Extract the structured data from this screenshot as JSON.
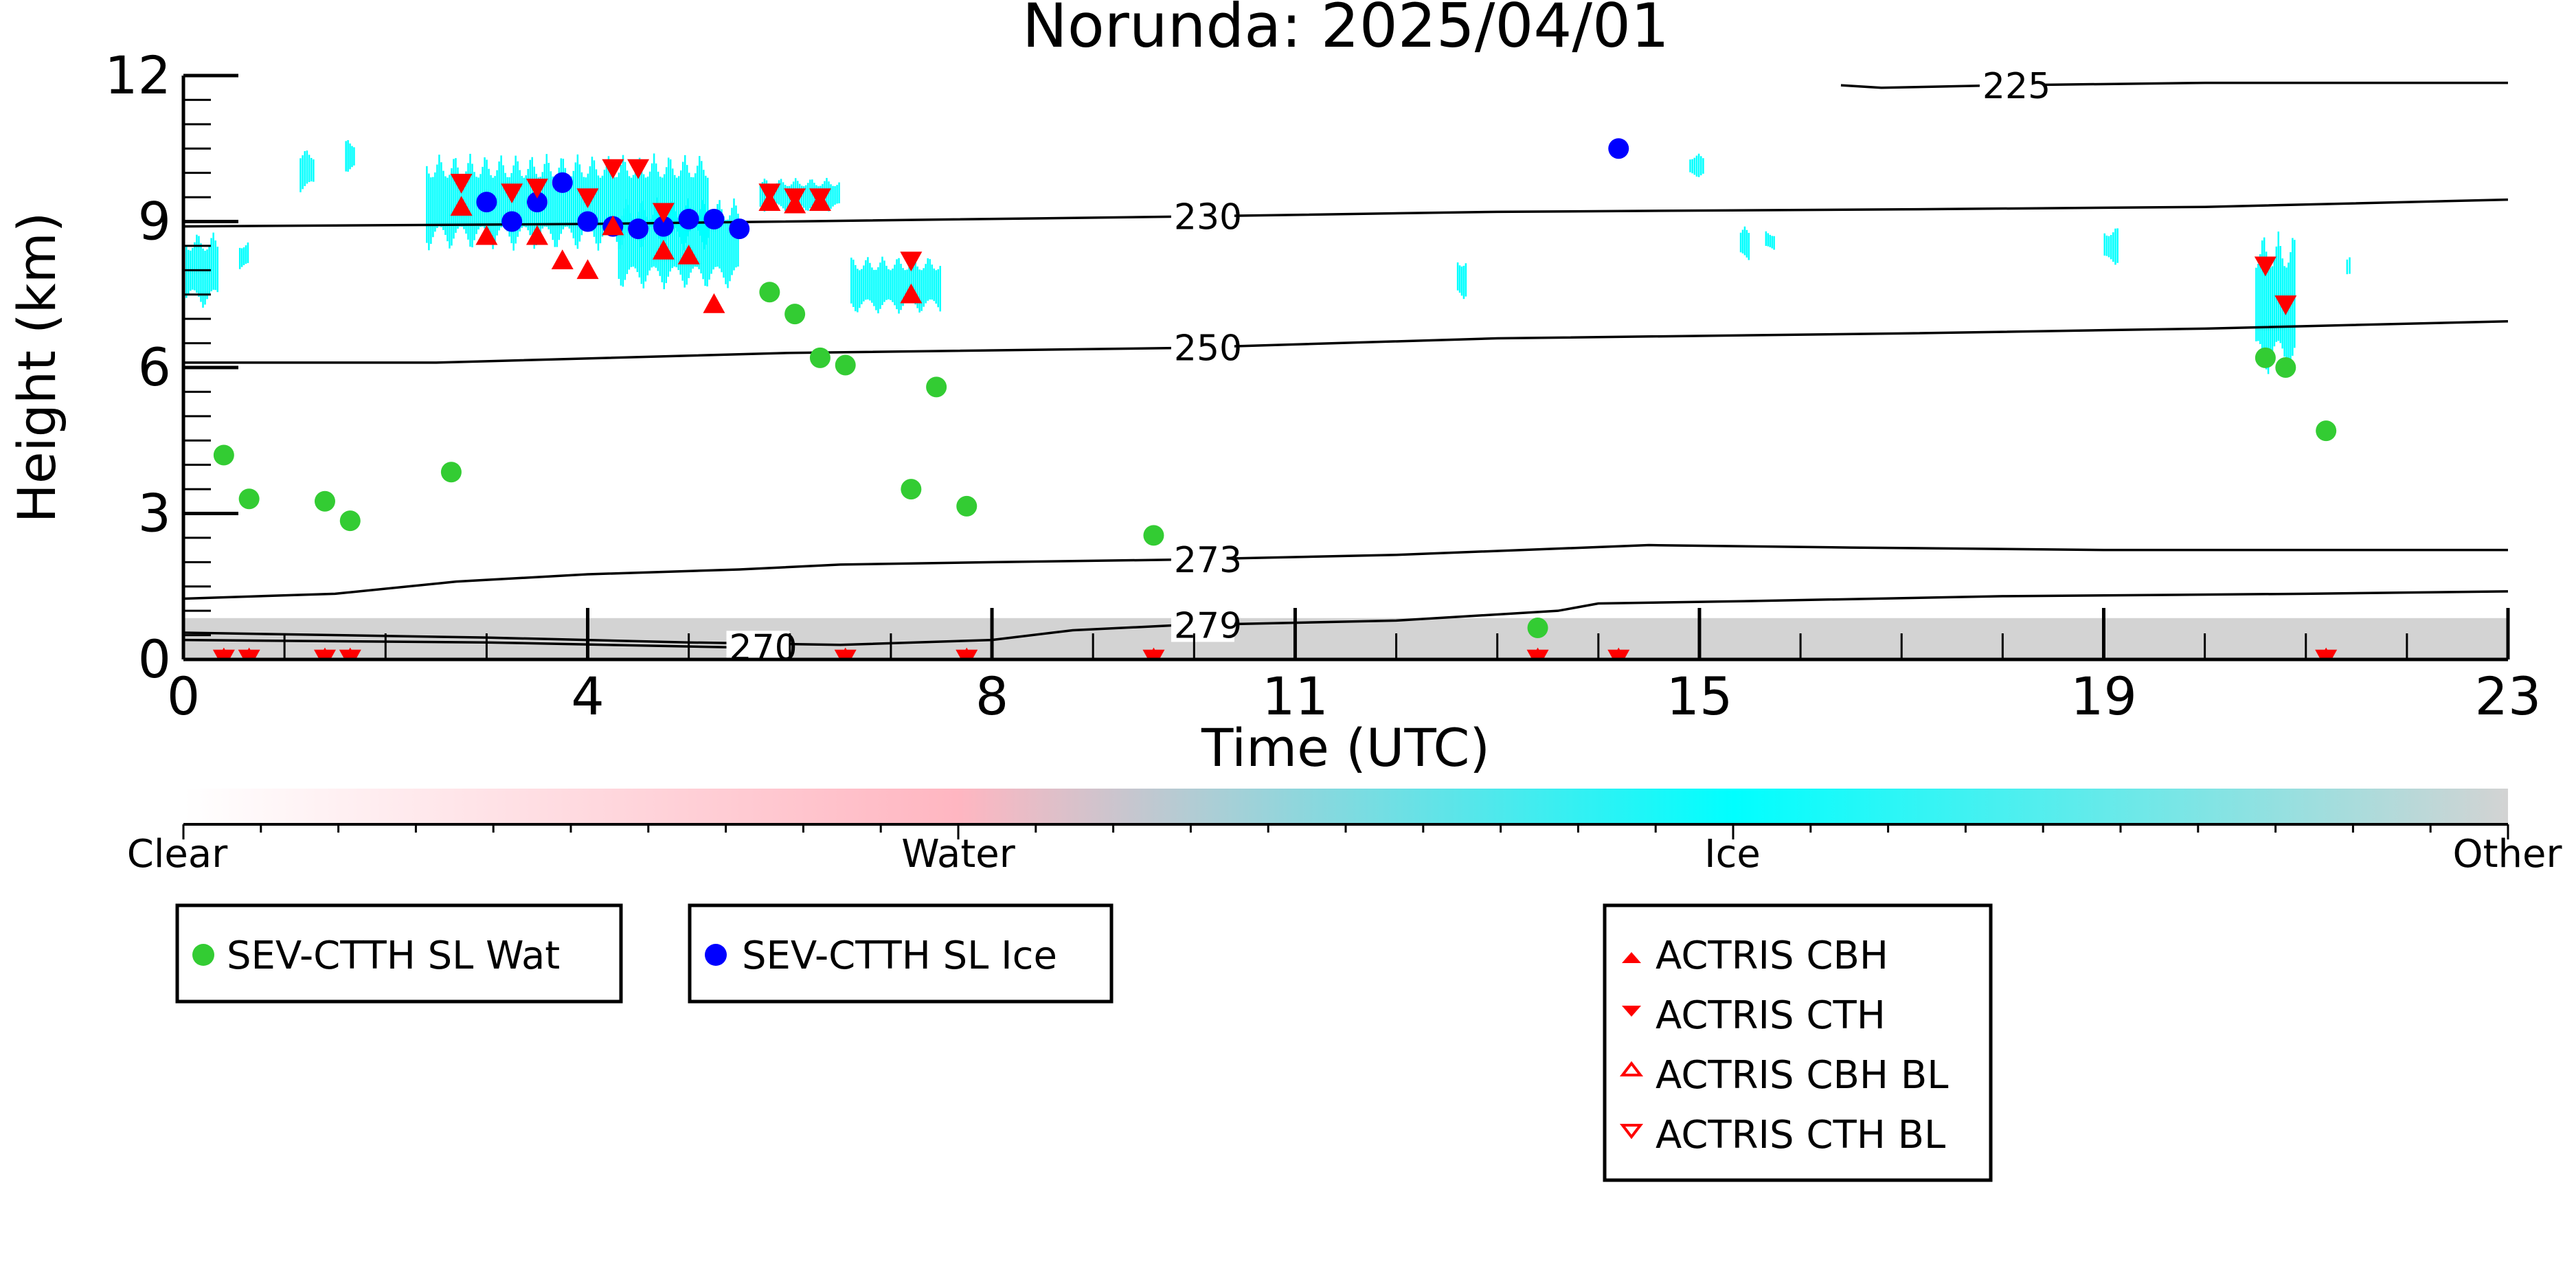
{
  "chart_data": {
    "type": "scatter",
    "title": "Norunda: 2025/04/01",
    "xlabel": "Time (UTC)",
    "ylabel": "Height (km)",
    "xlim": [
      0,
      23
    ],
    "ylim": [
      0,
      12
    ],
    "x_ticks": [
      0,
      4,
      8,
      11,
      15,
      19,
      23
    ],
    "y_ticks": [
      0,
      3,
      6,
      9,
      12
    ],
    "colorbar": {
      "labels": [
        "Clear",
        "Water",
        "Ice",
        "Other"
      ],
      "colors": {
        "Clear": "#ffffff",
        "Water": "#ffb6c1",
        "Ice": "#00ffff",
        "Other": "#d3d3d3"
      }
    },
    "isotherms": [
      {
        "label": "230",
        "label_x": 9.8,
        "points": [
          [
            0,
            8.9
          ],
          [
            4,
            8.95
          ],
          [
            9.8,
            9.1
          ],
          [
            13,
            9.2
          ],
          [
            17,
            9.25
          ],
          [
            20,
            9.3
          ],
          [
            23,
            9.45
          ]
        ]
      },
      {
        "label": "250",
        "label_x": 9.8,
        "points": [
          [
            0,
            6.1
          ],
          [
            2.5,
            6.1
          ],
          [
            6,
            6.3
          ],
          [
            9.8,
            6.4
          ],
          [
            13,
            6.6
          ],
          [
            17,
            6.7
          ],
          [
            20,
            6.8
          ],
          [
            23,
            6.95
          ]
        ]
      },
      {
        "label": "273",
        "label_x": 9.8,
        "points": [
          [
            0,
            1.25
          ],
          [
            1.5,
            1.35
          ],
          [
            2.7,
            1.6
          ],
          [
            4,
            1.75
          ],
          [
            5.5,
            1.85
          ],
          [
            6.5,
            1.95
          ],
          [
            8,
            2.0
          ],
          [
            9.8,
            2.05
          ],
          [
            12,
            2.15
          ],
          [
            14.5,
            2.35
          ],
          [
            16.5,
            2.3
          ],
          [
            19,
            2.25
          ],
          [
            23,
            2.25
          ]
        ]
      },
      {
        "label": "279",
        "label_x": 9.8,
        "points": [
          [
            0,
            0.55
          ],
          [
            3,
            0.45
          ],
          [
            5,
            0.35
          ],
          [
            6.5,
            0.3
          ],
          [
            8,
            0.4
          ],
          [
            8.8,
            0.6
          ],
          [
            9.8,
            0.7
          ],
          [
            12,
            0.8
          ],
          [
            13.6,
            1.0
          ],
          [
            14,
            1.15
          ],
          [
            15.5,
            1.2
          ],
          [
            18,
            1.3
          ],
          [
            21,
            1.35
          ],
          [
            23,
            1.4
          ]
        ]
      },
      {
        "label": "270",
        "label_x": 5.4,
        "points": [
          [
            0,
            0.4
          ],
          [
            3,
            0.35
          ],
          [
            5.4,
            0.25
          ]
        ]
      },
      {
        "label": "225",
        "label_x": 17.8,
        "points": [
          [
            16.4,
            11.8
          ],
          [
            16.8,
            11.75
          ],
          [
            18,
            11.8
          ],
          [
            20,
            11.85
          ],
          [
            23,
            11.85
          ]
        ]
      }
    ],
    "series": [
      {
        "name": "SEV-CTTH SL Wat",
        "color": "#33cc33",
        "marker": "circle",
        "x": [
          0.4,
          0.65,
          1.4,
          1.65,
          2.65,
          5.8,
          6.05,
          6.3,
          6.55,
          7.2,
          7.45,
          7.75,
          9.6,
          13.4,
          20.6,
          20.8,
          21.2
        ],
        "y": [
          4.2,
          3.3,
          3.25,
          2.85,
          3.85,
          7.55,
          7.1,
          6.2,
          6.05,
          3.5,
          5.6,
          3.15,
          2.55,
          0.65,
          6.2,
          6.0,
          4.7
        ]
      },
      {
        "name": "SEV-CTTH SL Ice",
        "color": "#0000ff",
        "marker": "circle",
        "x": [
          3.0,
          3.25,
          3.5,
          3.75,
          4.0,
          4.25,
          4.5,
          4.75,
          5.0,
          5.25,
          5.5,
          14.2
        ],
        "y": [
          9.4,
          9.0,
          9.4,
          9.8,
          9.0,
          8.9,
          8.85,
          8.9,
          9.05,
          9.05,
          8.85,
          10.5
        ]
      },
      {
        "name": "ACTRIS CBH",
        "color": "#ff0000",
        "marker": "triangle-up",
        "x": [
          0.4,
          0.65,
          1.4,
          1.65,
          2.75,
          3.0,
          3.5,
          3.75,
          4.0,
          4.25,
          4.75,
          5.0,
          5.25,
          5.8,
          6.05,
          6.3,
          6.55,
          7.2,
          7.75,
          9.6,
          13.4,
          14.2,
          21.2
        ],
        "y": [
          0.02,
          0.02,
          0.02,
          0.02,
          9.3,
          8.7,
          8.7,
          8.2,
          8.0,
          8.9,
          8.4,
          8.3,
          7.3,
          9.4,
          9.35,
          9.4,
          0.02,
          7.5,
          0.02,
          0.02,
          0.02,
          0.02,
          0.02
        ]
      },
      {
        "name": "ACTRIS CTH",
        "color": "#ff0000",
        "marker": "triangle-down",
        "x": [
          0.4,
          0.65,
          1.4,
          1.65,
          2.75,
          3.25,
          3.5,
          4.0,
          4.25,
          4.5,
          4.75,
          5.8,
          6.05,
          6.3,
          6.55,
          7.2,
          7.75,
          9.6,
          13.4,
          14.2,
          20.6,
          20.8,
          21.2
        ],
        "y": [
          0.02,
          0.02,
          0.02,
          0.02,
          9.8,
          9.6,
          9.7,
          9.5,
          10.1,
          10.1,
          9.2,
          9.6,
          9.5,
          9.5,
          0.02,
          8.2,
          0.02,
          0.02,
          0.02,
          0.02,
          8.1,
          7.3,
          0.02
        ]
      },
      {
        "name": "ACTRIS CBH BL",
        "color": "#ff0000",
        "marker": "triangle-up-open",
        "x": [],
        "y": []
      },
      {
        "name": "ACTRIS CTH BL",
        "color": "#ff0000",
        "marker": "triangle-down-open",
        "x": [],
        "y": []
      }
    ],
    "cloud_mask": {
      "ice_patches": [
        {
          "x0": 0.0,
          "x1": 0.35,
          "ytop": 8.8,
          "ybot": 7.2
        },
        {
          "x0": 0.55,
          "x1": 0.65,
          "ytop": 8.6,
          "ybot": 8.0
        },
        {
          "x0": 1.15,
          "x1": 1.3,
          "ytop": 10.5,
          "ybot": 9.6
        },
        {
          "x0": 1.6,
          "x1": 1.7,
          "ytop": 10.7,
          "ybot": 10.0
        },
        {
          "x0": 2.4,
          "x1": 5.2,
          "ytop": 10.4,
          "ybot": 8.4
        },
        {
          "x0": 4.3,
          "x1": 5.5,
          "ytop": 9.5,
          "ybot": 7.6
        },
        {
          "x0": 5.7,
          "x1": 6.5,
          "ytop": 9.9,
          "ybot": 9.2
        },
        {
          "x0": 6.6,
          "x1": 7.5,
          "ytop": 8.3,
          "ybot": 7.1
        },
        {
          "x0": 12.6,
          "x1": 12.7,
          "ytop": 8.3,
          "ybot": 7.4
        },
        {
          "x0": 14.9,
          "x1": 15.05,
          "ytop": 10.4,
          "ybot": 9.9
        },
        {
          "x0": 15.4,
          "x1": 15.5,
          "ytop": 8.9,
          "ybot": 8.2
        },
        {
          "x0": 15.65,
          "x1": 15.75,
          "ytop": 8.8,
          "ybot": 8.4
        },
        {
          "x0": 19.0,
          "x1": 19.15,
          "ytop": 8.9,
          "ybot": 8.1
        },
        {
          "x0": 20.5,
          "x1": 20.9,
          "ytop": 8.8,
          "ybot": 5.8
        },
        {
          "x0": 21.4,
          "x1": 21.45,
          "ytop": 8.3,
          "ybot": 7.8
        }
      ],
      "other_layer": {
        "x0": 0,
        "x1": 23,
        "ytop": 0.85
      }
    }
  },
  "legend_boxes": [
    {
      "entries": [
        "SEV-CTTH SL Wat"
      ]
    },
    {
      "entries": [
        "SEV-CTTH SL Ice"
      ]
    },
    {
      "entries": [
        "ACTRIS CBH",
        "ACTRIS CTH",
        "ACTRIS CBH BL",
        "ACTRIS CTH BL"
      ]
    }
  ]
}
